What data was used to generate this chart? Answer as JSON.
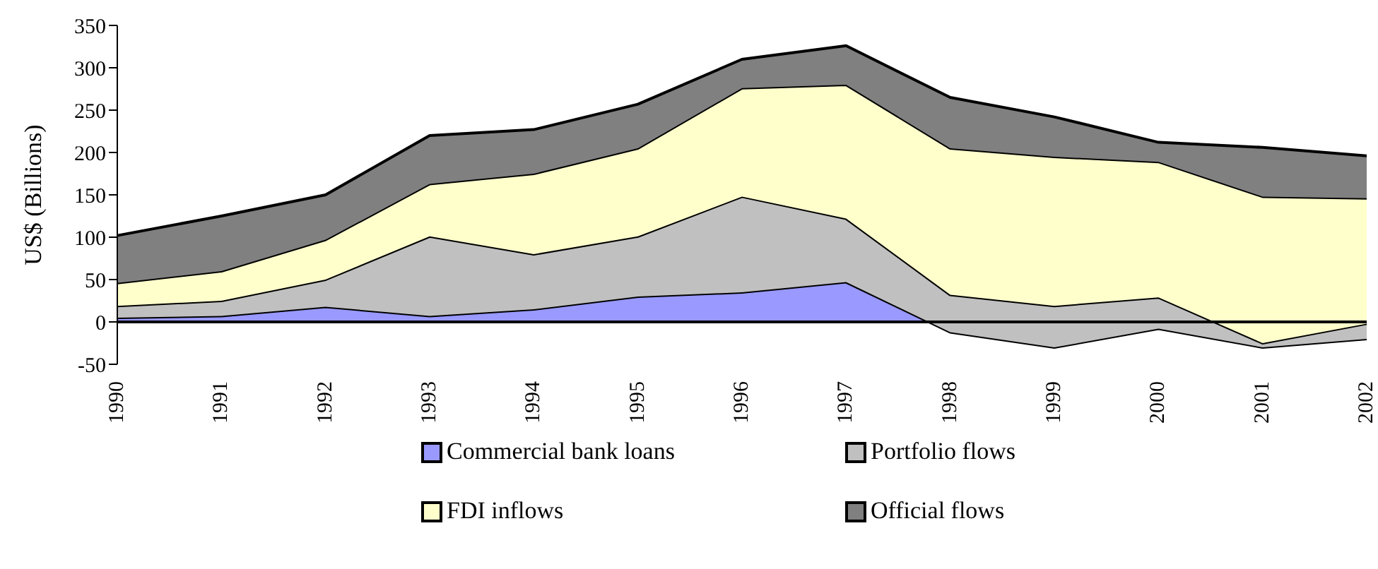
{
  "chart_data": {
    "type": "area",
    "stacked": true,
    "ylabel": "US$ (Billions)",
    "categories": [
      "1990",
      "1991",
      "1992",
      "1993",
      "1994",
      "1995",
      "1996",
      "1997",
      "1998",
      "1999",
      "2000",
      "2001",
      "2002"
    ],
    "series": [
      {
        "name": "Commercial bank loans",
        "color": "#9999ff",
        "values": [
          5,
          7,
          18,
          7,
          15,
          30,
          35,
          47,
          -12,
          -30,
          -8,
          -30,
          -20
        ]
      },
      {
        "name": "Portfolio flows",
        "color": "#c0c0c0",
        "values": [
          14,
          18,
          32,
          94,
          65,
          71,
          113,
          75,
          44,
          49,
          37,
          5,
          18
        ]
      },
      {
        "name": "FDI inflows",
        "color": "#ffffcc",
        "values": [
          27,
          35,
          47,
          62,
          95,
          104,
          128,
          158,
          173,
          176,
          160,
          173,
          148
        ]
      },
      {
        "name": "Official flows",
        "color": "#808080",
        "values": [
          56,
          65,
          53,
          57,
          52,
          52,
          34,
          46,
          60,
          47,
          23,
          58,
          50
        ]
      }
    ],
    "ylim": [
      -50,
      350
    ],
    "yticks": [
      -50,
      0,
      50,
      100,
      150,
      200,
      250,
      300,
      350
    ],
    "legend": "bottom"
  }
}
